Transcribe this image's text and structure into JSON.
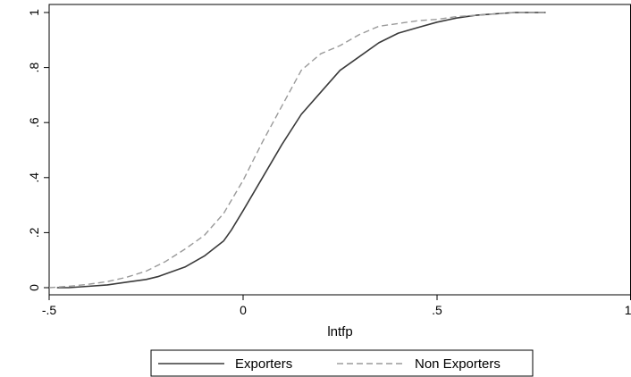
{
  "chart_data": {
    "type": "line",
    "title": "",
    "xlabel": "lntfp",
    "ylabel": "",
    "xlim": [
      -0.5,
      1
    ],
    "ylim": [
      0,
      1
    ],
    "x_ticks": [
      {
        "value": -0.5,
        "label": "-.5"
      },
      {
        "value": 0,
        "label": "0"
      },
      {
        "value": 0.5,
        "label": ".5"
      },
      {
        "value": 1,
        "label": "1"
      }
    ],
    "y_ticks": [
      {
        "value": 0,
        "label": "0"
      },
      {
        "value": 0.2,
        "label": ".2"
      },
      {
        "value": 0.4,
        "label": ".4"
      },
      {
        "value": 0.6,
        "label": ".6"
      },
      {
        "value": 0.8,
        "label": ".8"
      },
      {
        "value": 1,
        "label": "1"
      }
    ],
    "grid": false,
    "legend_position": "bottom",
    "series": [
      {
        "name": "Exporters",
        "color": "#3a3a3a",
        "dash": "solid",
        "x": [
          -0.48,
          -0.45,
          -0.4,
          -0.35,
          -0.3,
          -0.25,
          -0.22,
          -0.2,
          -0.15,
          -0.1,
          -0.05,
          -0.03,
          0,
          0.05,
          0.1,
          0.15,
          0.2,
          0.25,
          0.3,
          0.35,
          0.4,
          0.45,
          0.5,
          0.55,
          0.6,
          0.65,
          0.7,
          0.78
        ],
        "y": [
          0.0,
          0.0,
          0.005,
          0.01,
          0.02,
          0.03,
          0.04,
          0.05,
          0.075,
          0.115,
          0.17,
          0.21,
          0.28,
          0.4,
          0.52,
          0.63,
          0.71,
          0.79,
          0.84,
          0.89,
          0.925,
          0.945,
          0.965,
          0.98,
          0.99,
          0.995,
          1.0,
          1.0
        ]
      },
      {
        "name": "Non Exporters",
        "color": "#9a9a9a",
        "dash": "dashed",
        "x": [
          -0.5,
          -0.45,
          -0.4,
          -0.35,
          -0.3,
          -0.25,
          -0.2,
          -0.15,
          -0.1,
          -0.05,
          0,
          0.05,
          0.1,
          0.15,
          0.2,
          0.25,
          0.3,
          0.35,
          0.4,
          0.45,
          0.5,
          0.55,
          0.6,
          0.65,
          0.7,
          0.78
        ],
        "y": [
          0.0,
          0.005,
          0.012,
          0.022,
          0.038,
          0.06,
          0.095,
          0.14,
          0.19,
          0.27,
          0.39,
          0.53,
          0.66,
          0.79,
          0.85,
          0.88,
          0.92,
          0.95,
          0.96,
          0.97,
          0.975,
          0.985,
          0.99,
          0.995,
          1.0,
          1.0
        ]
      }
    ]
  }
}
